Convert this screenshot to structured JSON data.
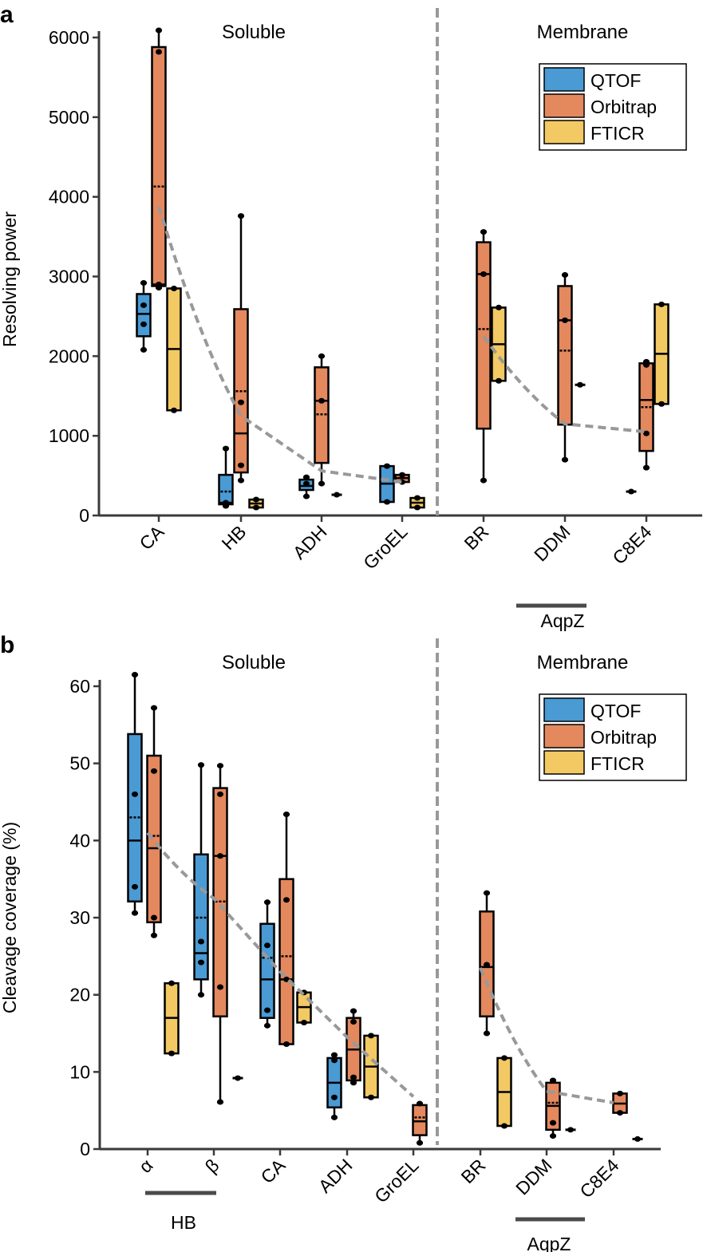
{
  "chart_data": [
    {
      "panel": "a",
      "type": "box",
      "ylabel": "Resolving power",
      "ylim": [
        0,
        6000
      ],
      "yticks": [
        0,
        1000,
        2000,
        3000,
        4000,
        5000,
        6000
      ],
      "regions": [
        "Soluble",
        "Membrane"
      ],
      "categories": [
        "CA",
        "HB",
        "ADH",
        "GroEL",
        "BR",
        "DDM",
        "C8E4"
      ],
      "group_labels": [
        {
          "label": "AqpZ",
          "from": "DDM",
          "to": "C8E4"
        }
      ],
      "legend": {
        "position": "top-right",
        "entries": [
          "QTOF",
          "Orbitrap",
          "FTICR"
        ]
      },
      "series_colors": {
        "QTOF": "#4a9ad4",
        "Orbitrap": "#e4885e",
        "FTICR": "#f2c963"
      },
      "boxes": [
        {
          "category": "CA",
          "series": "QTOF",
          "min": 2080,
          "q1": 2250,
          "median": 2530,
          "mean": 2560,
          "q3": 2780,
          "max": 2920,
          "points": [
            2080,
            2400,
            2640,
            2920
          ]
        },
        {
          "category": "CA",
          "series": "Orbitrap",
          "min": 2860,
          "q1": 2880,
          "median": 2900,
          "mean": 4130,
          "q3": 5880,
          "max": 6090,
          "points": [
            2860,
            2900,
            5820,
            6090
          ]
        },
        {
          "category": "CA",
          "series": "FTICR",
          "min": 1320,
          "q1": 1320,
          "median": 2090,
          "mean": 2090,
          "q3": 2850,
          "max": 2850,
          "points": [
            1320,
            2850
          ]
        },
        {
          "category": "HB",
          "series": "QTOF",
          "min": 120,
          "q1": 140,
          "median": 160,
          "mean": 300,
          "q3": 510,
          "max": 840,
          "points": [
            120,
            140,
            160,
            840
          ]
        },
        {
          "category": "HB",
          "series": "Orbitrap",
          "min": 440,
          "q1": 540,
          "median": 1030,
          "mean": 1560,
          "q3": 2590,
          "max": 3760,
          "points": [
            440,
            630,
            1420,
            3760
          ]
        },
        {
          "category": "HB",
          "series": "FTICR",
          "min": 100,
          "q1": 100,
          "median": 150,
          "mean": 150,
          "q3": 200,
          "max": 200,
          "points": [
            100,
            200
          ]
        },
        {
          "category": "ADH",
          "series": "QTOF",
          "min": 240,
          "q1": 320,
          "median": 370,
          "mean": 380,
          "q3": 450,
          "max": 480,
          "points": [
            240,
            400,
            480
          ]
        },
        {
          "category": "ADH",
          "series": "Orbitrap",
          "min": 400,
          "q1": 660,
          "median": 1440,
          "mean": 1270,
          "q3": 1860,
          "max": 2000,
          "points": [
            400,
            1440,
            2000
          ]
        },
        {
          "category": "ADH",
          "series": "FTICR",
          "min": 260,
          "q1": 260,
          "median": 260,
          "mean": 260,
          "q3": 260,
          "max": 260,
          "points": [
            260
          ]
        },
        {
          "category": "GroEL",
          "series": "QTOF",
          "min": 170,
          "q1": 170,
          "median": 400,
          "mean": 400,
          "q3": 620,
          "max": 620,
          "points": [
            170,
            620
          ]
        },
        {
          "category": "GroEL",
          "series": "Orbitrap",
          "min": 420,
          "q1": 420,
          "median": 470,
          "mean": 460,
          "q3": 510,
          "max": 510,
          "points": [
            420,
            510
          ]
        },
        {
          "category": "GroEL",
          "series": "FTICR",
          "min": 100,
          "q1": 100,
          "median": 160,
          "mean": 160,
          "q3": 220,
          "max": 220,
          "points": [
            100,
            220
          ]
        },
        {
          "category": "BR",
          "series": "Orbitrap",
          "min": 440,
          "q1": 1090,
          "median": 3030,
          "mean": 2340,
          "q3": 3430,
          "max": 3560,
          "points": [
            440,
            3030,
            3560
          ]
        },
        {
          "category": "BR",
          "series": "FTICR",
          "min": 1690,
          "q1": 1690,
          "median": 2150,
          "mean": 2150,
          "q3": 2610,
          "max": 2610,
          "points": [
            1690,
            2610
          ]
        },
        {
          "category": "DDM",
          "series": "Orbitrap",
          "min": 700,
          "q1": 1140,
          "median": 2450,
          "mean": 2070,
          "q3": 2880,
          "max": 3020,
          "points": [
            700,
            2450,
            3020
          ]
        },
        {
          "category": "DDM",
          "series": "FTICR",
          "min": 1640,
          "q1": 1640,
          "median": 1640,
          "mean": 1640,
          "q3": 1640,
          "max": 1640,
          "points": [
            1640
          ]
        },
        {
          "category": "C8E4",
          "series": "QTOF",
          "min": 300,
          "q1": 300,
          "median": 300,
          "mean": 300,
          "q3": 300,
          "max": 300,
          "points": [
            300
          ]
        },
        {
          "category": "C8E4",
          "series": "Orbitrap",
          "min": 600,
          "q1": 810,
          "median": 1450,
          "mean": 1360,
          "q3": 1910,
          "max": 1930,
          "points": [
            600,
            1030,
            1890,
            1930
          ]
        },
        {
          "category": "C8E4",
          "series": "FTICR",
          "min": 1400,
          "q1": 1400,
          "median": 2030,
          "mean": 2030,
          "q3": 2650,
          "max": 2650,
          "points": [
            1400,
            2650
          ]
        }
      ],
      "trend_lines": [
        {
          "region": "Soluble",
          "style": "dashed",
          "color": "#999999",
          "points": [
            [
              "CA",
              3880
            ],
            [
              "HB",
              1250
            ],
            [
              "ADH",
              560
            ],
            [
              "GroEL",
              420
            ]
          ]
        },
        {
          "region": "Membrane",
          "style": "dashed",
          "color": "#999999",
          "points": [
            [
              "BR",
              2250
            ],
            [
              "DDM",
              1150
            ],
            [
              "C8E4",
              1050
            ]
          ]
        }
      ]
    },
    {
      "panel": "b",
      "type": "box",
      "ylabel": "Cleavage coverage (%)",
      "ylim": [
        0,
        60
      ],
      "yticks": [
        0,
        10,
        20,
        30,
        40,
        50,
        60
      ],
      "regions": [
        "Soluble",
        "Membrane"
      ],
      "categories": [
        "α",
        "β",
        "CA",
        "ADH",
        "GroEL",
        "BR",
        "DDM",
        "C8E4"
      ],
      "group_labels": [
        {
          "label": "HB",
          "from": "α",
          "to": "β"
        },
        {
          "label": "AqpZ",
          "from": "DDM",
          "to": "C8E4"
        }
      ],
      "legend": {
        "position": "top-right",
        "entries": [
          "QTOF",
          "Orbitrap",
          "FTICR"
        ]
      },
      "series_colors": {
        "QTOF": "#4a9ad4",
        "Orbitrap": "#e4885e",
        "FTICR": "#f2c963"
      },
      "boxes": [
        {
          "category": "α",
          "series": "QTOF",
          "min": 30.6,
          "q1": 32.1,
          "median": 40.0,
          "mean": 43.0,
          "q3": 53.8,
          "max": 61.5,
          "points": [
            30.6,
            34.0,
            46.0,
            61.5
          ]
        },
        {
          "category": "α",
          "series": "Orbitrap",
          "min": 27.7,
          "q1": 29.4,
          "median": 39.0,
          "mean": 40.6,
          "q3": 51.0,
          "max": 57.2,
          "points": [
            27.7,
            30.0,
            49.0,
            57.2
          ]
        },
        {
          "category": "α",
          "series": "FTICR",
          "min": 12.4,
          "q1": 12.4,
          "median": 17.0,
          "mean": 17.0,
          "q3": 21.5,
          "max": 21.5,
          "points": [
            12.4,
            21.5
          ]
        },
        {
          "category": "β",
          "series": "QTOF",
          "min": 20.0,
          "q1": 22.0,
          "median": 25.4,
          "mean": 30.0,
          "q3": 38.2,
          "max": 49.8,
          "points": [
            20.0,
            24.2,
            26.9,
            49.8
          ]
        },
        {
          "category": "β",
          "series": "Orbitrap",
          "min": 6.1,
          "q1": 17.2,
          "median": 38.0,
          "mean": 32.1,
          "q3": 46.8,
          "max": 49.7,
          "points": [
            6.1,
            21.0,
            38.0,
            46.0,
            49.7
          ]
        },
        {
          "category": "β",
          "series": "FTICR",
          "min": 9.2,
          "q1": 9.2,
          "median": 9.2,
          "mean": 9.2,
          "q3": 9.2,
          "max": 9.2,
          "points": [
            9.2
          ]
        },
        {
          "category": "CA",
          "series": "QTOF",
          "min": 16.0,
          "q1": 17.0,
          "median": 22.0,
          "mean": 24.8,
          "q3": 29.2,
          "max": 32.0,
          "points": [
            16.0,
            18.0,
            26.4,
            32.0
          ]
        },
        {
          "category": "CA",
          "series": "Orbitrap",
          "min": 13.6,
          "q1": 13.6,
          "median": 22.0,
          "mean": 25.0,
          "q3": 35.0,
          "max": 43.4,
          "points": [
            13.6,
            22.0,
            32.3,
            43.4
          ]
        },
        {
          "category": "CA",
          "series": "FTICR",
          "min": 16.4,
          "q1": 16.4,
          "median": 18.4,
          "mean": 18.4,
          "q3": 20.3,
          "max": 20.3,
          "points": [
            16.4,
            20.3
          ]
        },
        {
          "category": "ADH",
          "series": "QTOF",
          "min": 4.1,
          "q1": 5.4,
          "median": 8.6,
          "mean": 8.8,
          "q3": 11.8,
          "max": 12.2,
          "points": [
            4.1,
            6.7,
            11.5,
            12.2
          ]
        },
        {
          "category": "ADH",
          "series": "Orbitrap",
          "min": 8.6,
          "q1": 8.9,
          "median": 12.9,
          "mean": 12.9,
          "q3": 17.0,
          "max": 17.9,
          "points": [
            8.6,
            9.3,
            16.5,
            17.9
          ]
        },
        {
          "category": "ADH",
          "series": "FTICR",
          "min": 6.7,
          "q1": 6.7,
          "median": 10.7,
          "mean": 10.7,
          "q3": 14.7,
          "max": 14.7,
          "points": [
            6.7,
            14.7
          ]
        },
        {
          "category": "GroEL",
          "series": "Orbitrap",
          "min": 0.8,
          "q1": 1.8,
          "median": 3.6,
          "mean": 4.1,
          "q3": 5.7,
          "max": 5.9,
          "points": [
            0.8,
            5.9
          ]
        },
        {
          "category": "BR",
          "series": "Orbitrap",
          "min": 15.0,
          "q1": 17.2,
          "median": 23.6,
          "mean": 23.9,
          "q3": 30.8,
          "max": 33.2,
          "points": [
            15.0,
            23.9,
            33.2
          ]
        },
        {
          "category": "BR",
          "series": "FTICR",
          "min": 3.0,
          "q1": 3.0,
          "median": 7.4,
          "mean": 7.4,
          "q3": 11.8,
          "max": 11.8,
          "points": [
            3.0,
            11.8
          ]
        },
        {
          "category": "DDM",
          "series": "Orbitrap",
          "min": 1.7,
          "q1": 2.5,
          "median": 5.6,
          "mean": 6.0,
          "q3": 8.6,
          "max": 8.9,
          "points": [
            1.7,
            3.4,
            8.9
          ]
        },
        {
          "category": "DDM",
          "series": "FTICR",
          "min": 2.5,
          "q1": 2.5,
          "median": 2.5,
          "mean": 2.5,
          "q3": 2.5,
          "max": 2.5,
          "points": [
            2.5
          ]
        },
        {
          "category": "C8E4",
          "series": "Orbitrap",
          "min": 4.7,
          "q1": 4.7,
          "median": 5.9,
          "mean": 5.9,
          "q3": 7.2,
          "max": 7.2,
          "points": [
            4.7,
            7.2
          ]
        },
        {
          "category": "C8E4",
          "series": "FTICR",
          "min": 1.3,
          "q1": 1.3,
          "median": 1.3,
          "mean": 1.3,
          "q3": 1.3,
          "max": 1.3,
          "points": [
            1.3
          ]
        }
      ],
      "trend_lines": [
        {
          "region": "Soluble",
          "style": "dashed",
          "color": "#999999",
          "points": [
            [
              "α",
              41.0
            ],
            [
              "β",
              32.5
            ],
            [
              "CA",
              23.0
            ],
            [
              "ADH",
              14.5
            ],
            [
              "GroEL",
              6.8
            ]
          ]
        },
        {
          "region": "Membrane",
          "style": "dashed",
          "color": "#999999",
          "points": [
            [
              "BR",
              23.5
            ],
            [
              "DDM",
              7.5
            ],
            [
              "C8E4",
              6.0
            ]
          ]
        }
      ]
    }
  ]
}
